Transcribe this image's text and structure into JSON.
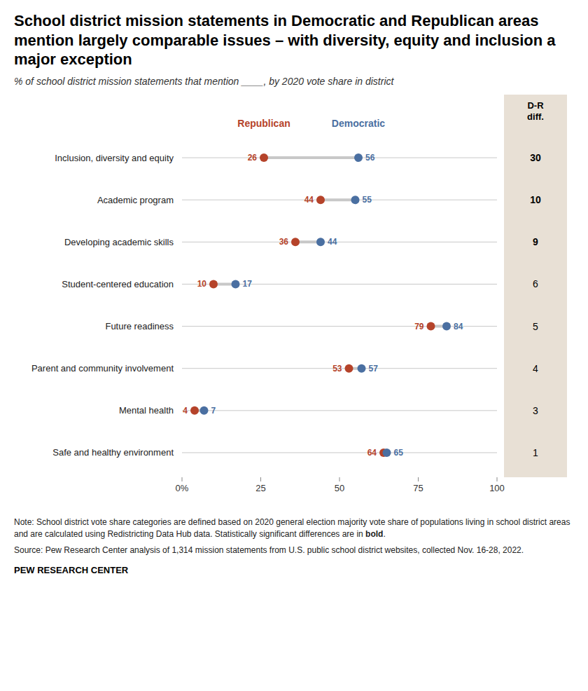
{
  "chart_data": {
    "type": "dumbbell",
    "orientation": "horizontal",
    "title": "School district mission statements in Democratic and Republican areas mention largely comparable issues – with diversity, equity and inclusion a major exception",
    "subtitle": "% of school district mission statements that mention ____, by 2020 vote share in district",
    "categories": [
      "Inclusion, diversity and equity",
      "Academic program",
      "Developing academic skills",
      "Student-centered education",
      "Future readiness",
      "Parent and community involvement",
      "Mental health",
      "Safe and healthy environment"
    ],
    "series": [
      {
        "name": "Republican",
        "color": "#b5432a",
        "values": [
          26,
          44,
          36,
          10,
          79,
          53,
          4,
          64
        ]
      },
      {
        "name": "Democratic",
        "color": "#4a6fa1",
        "values": [
          56,
          55,
          44,
          17,
          84,
          57,
          7,
          65
        ]
      }
    ],
    "diff_label": "D-R\ndiff.",
    "diff_values": [
      30,
      10,
      9,
      6,
      5,
      4,
      3,
      1
    ],
    "diff_significant": [
      true,
      true,
      true,
      false,
      false,
      false,
      false,
      false
    ],
    "xlim": [
      0,
      100
    ],
    "xticks": [
      {
        "value": 0,
        "label": "0%"
      },
      25,
      50,
      75,
      100
    ],
    "grid": false,
    "legend": "top",
    "data_labels": true,
    "note": [
      "Note: School district vote share categories are defined based on 2020 general election majority vote share of populations living in school district areas and are calculated using Redistricting Data Hub data. Statistically significant differences are in ",
      "bold",
      "."
    ],
    "source": "Source: Pew Research Center analysis of 1,314 mission statements from U.S. public school district websites, collected Nov. 16-28, 2022.",
    "credit": "PEW RESEARCH CENTER"
  }
}
